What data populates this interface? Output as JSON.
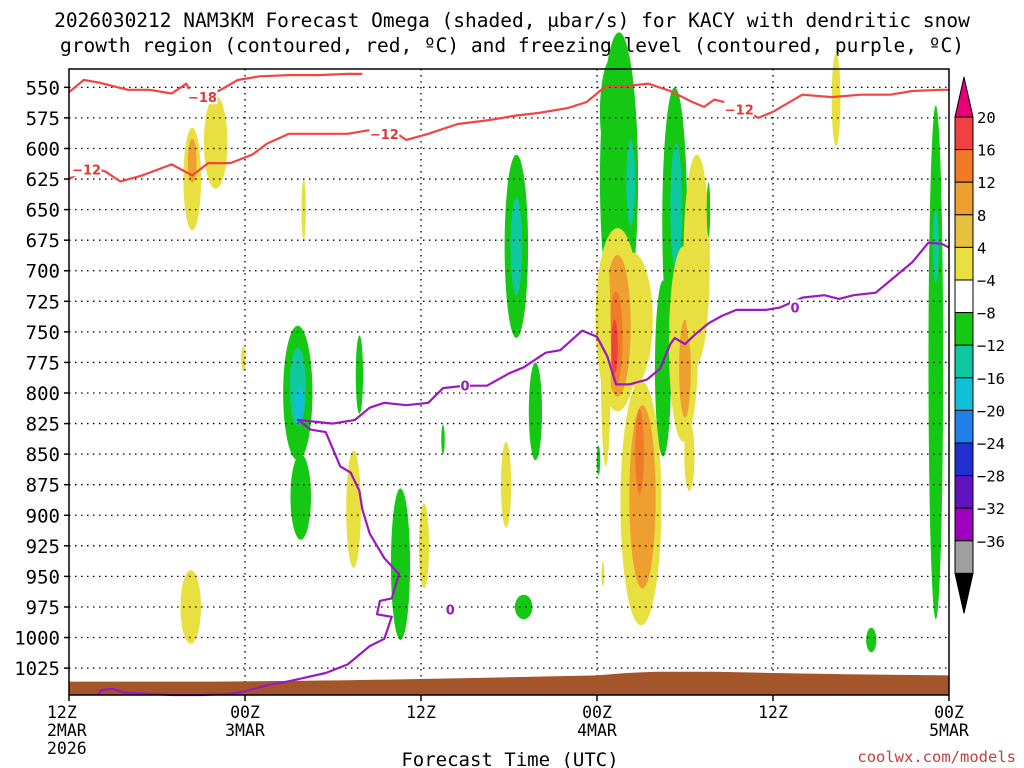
{
  "chart_data": {
    "type": "heatmap",
    "title_line1": "2026030212 NAM3KM Forecast Omega (shaded, μbar/s) for KACY with dendritic snow",
    "title_line2": "growth region (contoured, red, ºC) and freezing level (contoured, purple, ºC)",
    "xlabel": "Forecast Time (UTC)",
    "credit": "coolwx.com/models",
    "x_range_hours": [
      0,
      60
    ],
    "y_range_mb": [
      535,
      1047
    ],
    "y_ticks": [
      550,
      575,
      600,
      625,
      650,
      675,
      700,
      725,
      750,
      775,
      800,
      825,
      850,
      875,
      900,
      925,
      950,
      975,
      1000,
      1025
    ],
    "x_ticks": [
      {
        "hour": 0,
        "line1": "12Z",
        "line2": "2MAR",
        "line3": "2026"
      },
      {
        "hour": 12,
        "line1": "00Z",
        "line2": "3MAR",
        "line3": ""
      },
      {
        "hour": 24,
        "line1": "12Z",
        "line2": "",
        "line3": ""
      },
      {
        "hour": 36,
        "line1": "00Z",
        "line2": "4MAR",
        "line3": ""
      },
      {
        "hour": 48,
        "line1": "12Z",
        "line2": "",
        "line3": ""
      },
      {
        "hour": 60,
        "line1": "00Z",
        "line2": "5MAR",
        "line3": ""
      }
    ],
    "colorbar": {
      "labels": [
        "20",
        "16",
        "12",
        "8",
        "4",
        "−4",
        "−8",
        "−12",
        "−16",
        "−20",
        "−24",
        "−28",
        "−32",
        "−36"
      ],
      "top_color": "#e8007a",
      "colors": [
        "#f04040",
        "#f07a28",
        "#eda030",
        "#e8c040",
        "#e8e040",
        "#ffffff",
        "#14c814",
        "#10c8a0",
        "#10c0d8",
        "#2080e8",
        "#2030d0",
        "#6014c0",
        "#a000c0",
        "#a0a0a0"
      ],
      "bottom_color": "#000000"
    },
    "omega_blobs": [
      {
        "cx": 8.4,
        "cy": 625,
        "rx": 0.6,
        "ry": 42,
        "color": "#e8e040"
      },
      {
        "cx": 8.4,
        "cy": 610,
        "rx": 0.3,
        "ry": 18,
        "color": "#eda030"
      },
      {
        "cx": 10.0,
        "cy": 595,
        "rx": 0.8,
        "ry": 38,
        "color": "#e8e040"
      },
      {
        "cx": 16.0,
        "cy": 650,
        "rx": 0.15,
        "ry": 25,
        "color": "#e8e040"
      },
      {
        "cx": 11.9,
        "cy": 772,
        "rx": 0.15,
        "ry": 10,
        "color": "#e8e040"
      },
      {
        "cx": 15.6,
        "cy": 800,
        "rx": 1.0,
        "ry": 55,
        "color": "#14c814"
      },
      {
        "cx": 15.6,
        "cy": 795,
        "rx": 0.55,
        "ry": 32,
        "color": "#10c8a0"
      },
      {
        "cx": 15.7,
        "cy": 810,
        "rx": 0.3,
        "ry": 15,
        "color": "#10c0d8"
      },
      {
        "cx": 15.8,
        "cy": 885,
        "rx": 0.7,
        "ry": 35,
        "color": "#14c814"
      },
      {
        "cx": 19.8,
        "cy": 785,
        "rx": 0.25,
        "ry": 32,
        "color": "#14c814"
      },
      {
        "cx": 19.4,
        "cy": 895,
        "rx": 0.5,
        "ry": 48,
        "color": "#e8e040"
      },
      {
        "cx": 22.6,
        "cy": 940,
        "rx": 0.65,
        "ry": 62,
        "color": "#14c814"
      },
      {
        "cx": 24.2,
        "cy": 925,
        "rx": 0.35,
        "ry": 35,
        "color": "#e8e040"
      },
      {
        "cx": 25.5,
        "cy": 838,
        "rx": 0.12,
        "ry": 12,
        "color": "#14c814"
      },
      {
        "cx": 8.3,
        "cy": 975,
        "rx": 0.7,
        "ry": 30,
        "color": "#e8e040"
      },
      {
        "cx": 30.5,
        "cy": 680,
        "rx": 0.8,
        "ry": 75,
        "color": "#14c814"
      },
      {
        "cx": 30.5,
        "cy": 680,
        "rx": 0.4,
        "ry": 40,
        "color": "#10c8a0"
      },
      {
        "cx": 31.8,
        "cy": 815,
        "rx": 0.45,
        "ry": 40,
        "color": "#14c814"
      },
      {
        "cx": 29.8,
        "cy": 875,
        "rx": 0.35,
        "ry": 35,
        "color": "#e8e040"
      },
      {
        "cx": 31.0,
        "cy": 975,
        "rx": 0.6,
        "ry": 10,
        "color": "#14c814"
      },
      {
        "cx": 37.5,
        "cy": 625,
        "rx": 1.3,
        "ry": 120,
        "color": "#14c814"
      },
      {
        "cx": 37.1,
        "cy": 570,
        "rx": 0.9,
        "ry": 45,
        "color": "#14c814"
      },
      {
        "cx": 38.3,
        "cy": 628,
        "rx": 0.3,
        "ry": 35,
        "color": "#10c8a0"
      },
      {
        "cx": 41.3,
        "cy": 660,
        "rx": 0.85,
        "ry": 110,
        "color": "#14c814"
      },
      {
        "cx": 41.4,
        "cy": 648,
        "rx": 0.4,
        "ry": 52,
        "color": "#10c8a0"
      },
      {
        "cx": 40.5,
        "cy": 780,
        "rx": 0.55,
        "ry": 72,
        "color": "#14c814"
      },
      {
        "cx": 37.4,
        "cy": 740,
        "rx": 1.5,
        "ry": 75,
        "color": "#e8e040"
      },
      {
        "cx": 38.4,
        "cy": 740,
        "rx": 1.4,
        "ry": 55,
        "color": "#e8e040"
      },
      {
        "cx": 37.4,
        "cy": 745,
        "rx": 0.9,
        "ry": 58,
        "color": "#eda030"
      },
      {
        "cx": 37.3,
        "cy": 755,
        "rx": 0.45,
        "ry": 38,
        "color": "#f07a28"
      },
      {
        "cx": 37.2,
        "cy": 762,
        "rx": 0.22,
        "ry": 22,
        "color": "#f04040"
      },
      {
        "cx": 36.6,
        "cy": 770,
        "rx": 0.35,
        "ry": 90,
        "color": "#e8e040"
      },
      {
        "cx": 41.9,
        "cy": 760,
        "rx": 1.0,
        "ry": 80,
        "color": "#e8e040"
      },
      {
        "cx": 42.0,
        "cy": 780,
        "rx": 0.4,
        "ry": 40,
        "color": "#eda030"
      },
      {
        "cx": 42.8,
        "cy": 690,
        "rx": 0.9,
        "ry": 85,
        "color": "#e8e040"
      },
      {
        "cx": 39.0,
        "cy": 890,
        "rx": 1.4,
        "ry": 100,
        "color": "#e8e040"
      },
      {
        "cx": 39.1,
        "cy": 885,
        "rx": 0.9,
        "ry": 75,
        "color": "#eda030"
      },
      {
        "cx": 38.9,
        "cy": 848,
        "rx": 0.3,
        "ry": 35,
        "color": "#f07a28"
      },
      {
        "cx": 36.1,
        "cy": 855,
        "rx": 0.12,
        "ry": 12,
        "color": "#14c814"
      },
      {
        "cx": 36.4,
        "cy": 948,
        "rx": 0.1,
        "ry": 10,
        "color": "#e8e040"
      },
      {
        "cx": 42.3,
        "cy": 852,
        "rx": 0.35,
        "ry": 28,
        "color": "#e8e040"
      },
      {
        "cx": 43.6,
        "cy": 650,
        "rx": 0.12,
        "ry": 22,
        "color": "#14c814"
      },
      {
        "cx": 52.3,
        "cy": 560,
        "rx": 0.3,
        "ry": 38,
        "color": "#e8e040"
      },
      {
        "cx": 59.1,
        "cy": 775,
        "rx": 0.5,
        "ry": 210,
        "color": "#14c814"
      },
      {
        "cx": 59.1,
        "cy": 680,
        "rx": 0.2,
        "ry": 30,
        "color": "#10c8a0"
      },
      {
        "cx": 54.7,
        "cy": 1002,
        "rx": 0.35,
        "ry": 10,
        "color": "#14c814"
      }
    ],
    "dgz_minus12": [
      [
        0,
        625
      ],
      [
        1.5,
        615
      ],
      [
        2.5,
        619
      ],
      [
        3.5,
        627
      ],
      [
        5,
        622
      ],
      [
        7,
        613
      ],
      [
        8.4,
        622
      ],
      [
        9.5,
        612
      ],
      [
        11,
        612
      ],
      [
        12.5,
        605
      ],
      [
        13.5,
        596
      ],
      [
        15,
        588
      ],
      [
        17,
        588
      ],
      [
        19,
        588
      ],
      [
        20.5,
        585
      ],
      [
        22,
        585
      ],
      [
        23,
        593
      ],
      [
        24.5,
        588
      ],
      [
        26.5,
        580
      ],
      [
        28.5,
        577
      ],
      [
        30.5,
        573
      ],
      [
        32,
        571
      ],
      [
        34,
        567
      ],
      [
        35.3,
        562
      ],
      [
        36.6,
        549
      ],
      [
        38,
        549
      ],
      [
        39.5,
        547
      ],
      [
        41,
        553
      ],
      [
        42.5,
        562
      ],
      [
        43.3,
        566
      ],
      [
        44,
        560
      ],
      [
        45,
        563
      ],
      [
        46,
        568
      ],
      [
        47,
        575
      ],
      [
        48,
        570
      ],
      [
        49,
        563
      ],
      [
        50,
        556
      ],
      [
        52,
        558
      ],
      [
        54,
        556
      ],
      [
        56,
        556
      ],
      [
        57.5,
        553
      ],
      [
        59.5,
        552
      ],
      [
        60,
        552
      ]
    ],
    "dgz_minus18": [
      [
        0,
        554
      ],
      [
        1,
        544
      ],
      [
        2,
        546
      ],
      [
        3,
        549
      ],
      [
        4,
        552
      ],
      [
        5.5,
        552
      ],
      [
        7,
        555
      ],
      [
        8.0,
        547
      ],
      [
        8.5,
        559
      ],
      [
        9.5,
        557
      ],
      [
        10.5,
        551
      ],
      [
        11.5,
        544
      ],
      [
        13,
        541
      ],
      [
        15,
        540
      ],
      [
        17,
        540
      ],
      [
        19,
        539
      ],
      [
        20,
        539
      ]
    ],
    "freezing_level": [
      [
        2,
        1047
      ],
      [
        2.2,
        1043
      ],
      [
        3.0,
        1042
      ],
      [
        3.8,
        1045
      ],
      [
        7,
        1047
      ],
      [
        9,
        1047
      ],
      [
        11,
        1046
      ],
      [
        12,
        1044
      ],
      [
        13.5,
        1039
      ],
      [
        14.5,
        1037
      ],
      [
        16,
        1033
      ],
      [
        17.5,
        1029
      ],
      [
        19,
        1022
      ],
      [
        20.5,
        1007
      ],
      [
        21.5,
        1001
      ],
      [
        22,
        983
      ],
      [
        21.0,
        981
      ],
      [
        21.2,
        970
      ],
      [
        22.0,
        968
      ],
      [
        22.5,
        948
      ],
      [
        21.5,
        935
      ],
      [
        20.5,
        915
      ],
      [
        20.0,
        895
      ],
      [
        19.8,
        880
      ],
      [
        19.2,
        865
      ],
      [
        18.5,
        860
      ],
      [
        17.5,
        832
      ],
      [
        16.5,
        830
      ],
      [
        15.6,
        822
      ],
      [
        18.0,
        825
      ],
      [
        19.5,
        822
      ],
      [
        20.5,
        812
      ],
      [
        21.5,
        808
      ],
      [
        23,
        810
      ],
      [
        24.5,
        808
      ],
      [
        25.5,
        796
      ],
      [
        27,
        794
      ],
      [
        28.5,
        794
      ],
      [
        30,
        784
      ],
      [
        31,
        779
      ],
      [
        32.5,
        767
      ],
      [
        33.5,
        765
      ],
      [
        35,
        749
      ],
      [
        36,
        754
      ],
      [
        36.7,
        770
      ],
      [
        37.3,
        793
      ],
      [
        38.2,
        793
      ],
      [
        39.4,
        789
      ],
      [
        40.3,
        780
      ],
      [
        41.0,
        760
      ],
      [
        41.3,
        755
      ],
      [
        42.0,
        760
      ],
      [
        42.7,
        752
      ],
      [
        43.6,
        743
      ],
      [
        44.5,
        737
      ],
      [
        45.5,
        732
      ],
      [
        47.5,
        732
      ],
      [
        48.5,
        730
      ],
      [
        50,
        722
      ],
      [
        51.5,
        720
      ],
      [
        52.5,
        723
      ],
      [
        53.5,
        720
      ],
      [
        55,
        718
      ],
      [
        56.5,
        703
      ],
      [
        57.5,
        693
      ],
      [
        58.6,
        677
      ],
      [
        59.5,
        678
      ],
      [
        60,
        681
      ]
    ],
    "contour_labels": [
      {
        "text": "−18",
        "h": 9.1,
        "mb": 558,
        "color": "#e03838"
      },
      {
        "text": "−12",
        "h": 1.2,
        "mb": 617,
        "color": "#e03838"
      },
      {
        "text": "−12",
        "h": 21.5,
        "mb": 588,
        "color": "#e03838"
      },
      {
        "text": "−12",
        "h": 45.7,
        "mb": 568,
        "color": "#e03838"
      },
      {
        "text": "0",
        "h": 26.0,
        "mb": 977,
        "color": "#9a18c0"
      },
      {
        "text": "0",
        "h": 27.0,
        "mb": 794,
        "color": "#9a18c0"
      },
      {
        "text": "0",
        "h": 49.5,
        "mb": 730,
        "color": "#9a18c0"
      }
    ],
    "terrain": {
      "color": "#a5552a",
      "profile": [
        [
          0,
          1036
        ],
        [
          10,
          1036
        ],
        [
          19,
          1035
        ],
        [
          28,
          1033
        ],
        [
          36,
          1031
        ],
        [
          38,
          1029
        ],
        [
          40,
          1028
        ],
        [
          44,
          1028
        ],
        [
          48,
          1029
        ],
        [
          53,
          1030
        ],
        [
          60,
          1031
        ]
      ]
    }
  }
}
